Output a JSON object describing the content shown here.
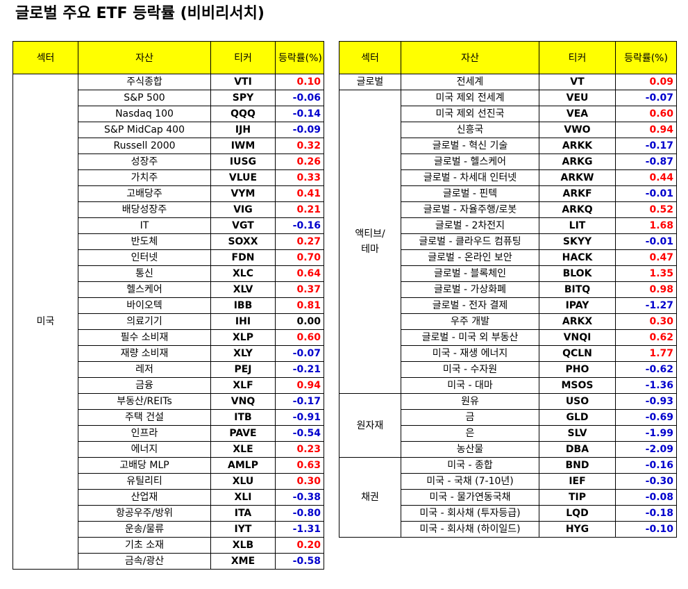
{
  "title": "글로벌 주요 ETF 등락률 (비비리서치)",
  "headers": {
    "sector": "섹터",
    "asset": "자산",
    "ticker": "티커",
    "change": "등락률(%)"
  },
  "colors": {
    "header_bg": "#ffff00",
    "positive": "#ff0000",
    "negative": "#0000cc"
  },
  "left_table": [
    {
      "sector": "미국",
      "rows": [
        {
          "asset": "주식종합",
          "ticker": "VTI",
          "change": "0.10"
        },
        {
          "asset": "S&P 500",
          "ticker": "SPY",
          "change": "-0.06"
        },
        {
          "asset": "Nasdaq 100",
          "ticker": "QQQ",
          "change": "-0.14"
        },
        {
          "asset": "S&P MidCap 400",
          "ticker": "IJH",
          "change": "-0.09"
        },
        {
          "asset": "Russell 2000",
          "ticker": "IWM",
          "change": "0.32"
        },
        {
          "asset": "성장주",
          "ticker": "IUSG",
          "change": "0.26"
        },
        {
          "asset": "가치주",
          "ticker": "VLUE",
          "change": "0.33"
        },
        {
          "asset": "고배당주",
          "ticker": "VYM",
          "change": "0.41"
        },
        {
          "asset": "배당성장주",
          "ticker": "VIG",
          "change": "0.21"
        },
        {
          "asset": "IT",
          "ticker": "VGT",
          "change": "-0.16"
        },
        {
          "asset": "반도체",
          "ticker": "SOXX",
          "change": "0.27"
        },
        {
          "asset": "인터넷",
          "ticker": "FDN",
          "change": "0.70"
        },
        {
          "asset": "통신",
          "ticker": "XLC",
          "change": "0.64"
        },
        {
          "asset": "헬스케어",
          "ticker": "XLV",
          "change": "0.37"
        },
        {
          "asset": "바이오텍",
          "ticker": "IBB",
          "change": "0.81"
        },
        {
          "asset": "의료기기",
          "ticker": "IHI",
          "change": "0.00"
        },
        {
          "asset": "필수 소비재",
          "ticker": "XLP",
          "change": "0.60"
        },
        {
          "asset": "재량 소비재",
          "ticker": "XLY",
          "change": "-0.07"
        },
        {
          "asset": "레저",
          "ticker": "PEJ",
          "change": "-0.21"
        },
        {
          "asset": "금융",
          "ticker": "XLF",
          "change": "0.94"
        },
        {
          "asset": "부동산/REITs",
          "ticker": "VNQ",
          "change": "-0.17"
        },
        {
          "asset": "주택 건설",
          "ticker": "ITB",
          "change": "-0.91"
        },
        {
          "asset": "인프라",
          "ticker": "PAVE",
          "change": "-0.54"
        },
        {
          "asset": "에너지",
          "ticker": "XLE",
          "change": "0.23"
        },
        {
          "asset": "고배당 MLP",
          "ticker": "AMLP",
          "change": "0.63"
        },
        {
          "asset": "유틸리티",
          "ticker": "XLU",
          "change": "0.30"
        },
        {
          "asset": "산업재",
          "ticker": "XLI",
          "change": "-0.38"
        },
        {
          "asset": "항공우주/방위",
          "ticker": "ITA",
          "change": "-0.80"
        },
        {
          "asset": "운송/물류",
          "ticker": "IYT",
          "change": "-1.31"
        },
        {
          "asset": "기초 소재",
          "ticker": "XLB",
          "change": "0.20"
        },
        {
          "asset": "금속/광산",
          "ticker": "XME",
          "change": "-0.58"
        }
      ]
    }
  ],
  "right_table": [
    {
      "sector": "글로벌",
      "rows": [
        {
          "asset": "전세계",
          "ticker": "VT",
          "change": "0.09"
        }
      ]
    },
    {
      "sector": "액티브/\n테마",
      "rows": [
        {
          "asset": "미국 제외 전세계",
          "ticker": "VEU",
          "change": "-0.07"
        },
        {
          "asset": "미국 제외 선진국",
          "ticker": "VEA",
          "change": "0.60"
        },
        {
          "asset": "신흥국",
          "ticker": "VWO",
          "change": "0.94"
        },
        {
          "asset": "글로벌 - 혁신 기술",
          "ticker": "ARKK",
          "change": "-0.17"
        },
        {
          "asset": "글로벌 - 헬스케어",
          "ticker": "ARKG",
          "change": "-0.87"
        },
        {
          "asset": "글로벌 - 차세대 인터넷",
          "ticker": "ARKW",
          "change": "0.44"
        },
        {
          "asset": "글로벌 - 핀텍",
          "ticker": "ARKF",
          "change": "-0.01"
        },
        {
          "asset": "글로벌 - 자율주행/로봇",
          "ticker": "ARKQ",
          "change": "0.52"
        },
        {
          "asset": "글로벌 - 2차전지",
          "ticker": "LIT",
          "change": "1.68"
        },
        {
          "asset": "글로벌 - 클라우드 컴퓨팅",
          "ticker": "SKYY",
          "change": "-0.01"
        },
        {
          "asset": "글로벌 - 온라인 보안",
          "ticker": "HACK",
          "change": "0.47"
        },
        {
          "asset": "글로벌 - 블록체인",
          "ticker": "BLOK",
          "change": "1.35"
        },
        {
          "asset": "글로벌 - 가상화폐",
          "ticker": "BITQ",
          "change": "0.98"
        },
        {
          "asset": "글로벌 - 전자 결제",
          "ticker": "IPAY",
          "change": "-1.27"
        },
        {
          "asset": "우주 개발",
          "ticker": "ARKX",
          "change": "0.30"
        },
        {
          "asset": "글로벌 - 미국 외 부동산",
          "ticker": "VNQI",
          "change": "0.62"
        },
        {
          "asset": "미국 - 재생 에너지",
          "ticker": "QCLN",
          "change": "1.77"
        },
        {
          "asset": "미국 - 수자원",
          "ticker": "PHO",
          "change": "-0.62"
        },
        {
          "asset": "미국 - 대마",
          "ticker": "MSOS",
          "change": "-1.36"
        }
      ]
    },
    {
      "sector": "원자재",
      "rows": [
        {
          "asset": "원유",
          "ticker": "USO",
          "change": "-0.93"
        },
        {
          "asset": "금",
          "ticker": "GLD",
          "change": "-0.69"
        },
        {
          "asset": "은",
          "ticker": "SLV",
          "change": "-1.99"
        },
        {
          "asset": "농산물",
          "ticker": "DBA",
          "change": "-2.09"
        }
      ]
    },
    {
      "sector": "채권",
      "rows": [
        {
          "asset": "미국 - 종합",
          "ticker": "BND",
          "change": "-0.16"
        },
        {
          "asset": "미국 - 국채 (7-10년)",
          "ticker": "IEF",
          "change": "-0.30"
        },
        {
          "asset": "미국 - 물가연동국채",
          "ticker": "TIP",
          "change": "-0.08"
        },
        {
          "asset": "미국 - 회사채 (투자등급)",
          "ticker": "LQD",
          "change": "-0.18"
        },
        {
          "asset": "미국 - 회사채 (하이일드)",
          "ticker": "HYG",
          "change": "-0.10"
        }
      ]
    }
  ]
}
